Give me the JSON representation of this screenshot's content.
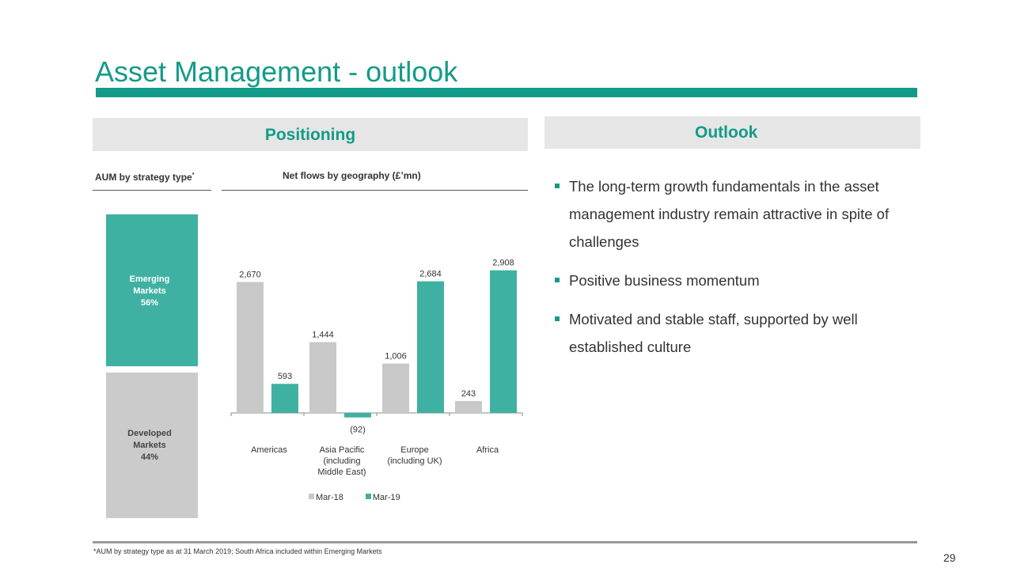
{
  "title": "Asset Management - outlook",
  "positioning": {
    "heading": "Positioning",
    "aum_heading": "AUM by strategy type",
    "aum_heading_mark": "*",
    "flows_heading": "Net flows by geography (£’mn)",
    "aum_blocks": [
      {
        "line1": "Emerging",
        "line2": "Markets",
        "line3": "56%"
      },
      {
        "line1": "Developed",
        "line2": "Markets",
        "line3": "44%"
      }
    ]
  },
  "outlook": {
    "heading": "Outlook",
    "bullets": [
      "The long-term growth fundamentals in the asset management industry remain attractive in spite of challenges",
      "Positive business momentum",
      "Motivated and stable staff, supported by well established culture"
    ]
  },
  "chart_data": {
    "type": "bar",
    "title": "Net flows by geography (£’mn)",
    "categories": [
      [
        "Americas"
      ],
      [
        "Asia Pacific",
        "(including",
        "Middle East)"
      ],
      [
        "Europe",
        "(including UK)"
      ],
      [
        "Africa"
      ]
    ],
    "series": [
      {
        "name": "Mar-18",
        "values": [
          2670,
          1444,
          1006,
          243
        ],
        "labels": [
          "2,670",
          "1,444",
          "1,006",
          "243"
        ],
        "color": "#c8c8c8"
      },
      {
        "name": "Mar-19",
        "values": [
          593,
          -92,
          2684,
          2908
        ],
        "labels": [
          "593",
          "(92)",
          "2,684",
          "2,908"
        ],
        "color": "#3fb1a3"
      }
    ],
    "legend": "bottom",
    "grid": false
  },
  "footnote": "*AUM by strategy type as at 31 March 2019; South Africa included within Emerging Markets",
  "page_number": "29",
  "colors": {
    "accent": "#139b88",
    "emerging": "#3fb1a3",
    "developed": "#cbcbcb"
  }
}
